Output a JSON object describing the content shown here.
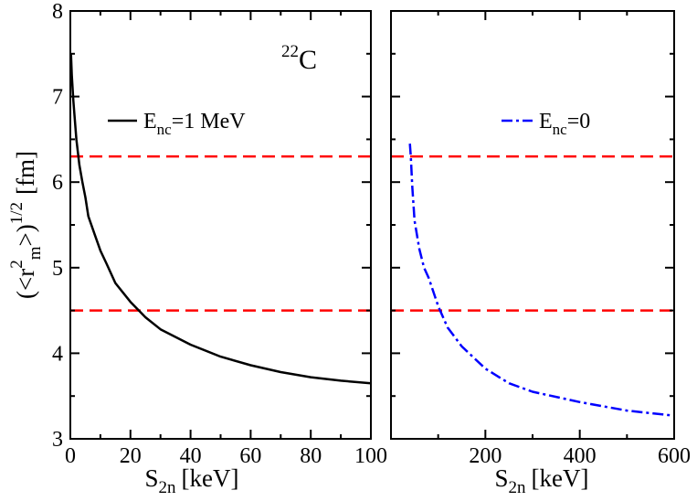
{
  "chart_data": [
    {
      "type": "line",
      "panel": "left",
      "annotation": {
        "mass": "22",
        "element": "C"
      },
      "xlabel": {
        "main": "S",
        "sub": "2n",
        "unit": "[keV]"
      },
      "ylabel": {
        "open": "(<r",
        "sup2": "2",
        "sub": "m",
        "close": ">)",
        "exp": "1/2",
        "unit": "[fm]"
      },
      "xlim": [
        0,
        100
      ],
      "ylim": [
        3,
        8
      ],
      "xticks": [
        0,
        20,
        40,
        60,
        80,
        100
      ],
      "yticks": [
        3,
        4,
        5,
        6,
        7,
        8
      ],
      "hlines": [
        {
          "y": 6.3,
          "color": "#ff0000",
          "style": "dashed"
        },
        {
          "y": 4.5,
          "color": "#ff0000",
          "style": "dashed"
        }
      ],
      "series": [
        {
          "name": "E_nc=1 MeV",
          "legend": {
            "main": "E",
            "sub": "nc",
            "rest": "=1 MeV"
          },
          "color": "#000000",
          "style": "solid",
          "x": [
            0.2,
            0.5,
            1,
            2,
            3,
            4,
            5,
            6,
            8,
            10,
            12,
            15,
            20,
            25,
            30,
            40,
            50,
            60,
            70,
            80,
            90,
            100
          ],
          "y": [
            7.5,
            7.25,
            6.95,
            6.5,
            6.2,
            6.0,
            5.82,
            5.6,
            5.4,
            5.2,
            5.05,
            4.82,
            4.6,
            4.42,
            4.28,
            4.1,
            3.96,
            3.86,
            3.78,
            3.72,
            3.68,
            3.65
          ]
        }
      ]
    },
    {
      "type": "line",
      "panel": "right",
      "xlabel": {
        "main": "S",
        "sub": "2n",
        "unit": "[keV]"
      },
      "xlim": [
        0,
        600
      ],
      "ylim": [
        3,
        8
      ],
      "xticks": [
        200,
        400,
        600
      ],
      "hlines": [
        {
          "y": 6.3,
          "color": "#ff0000",
          "style": "dashed"
        },
        {
          "y": 4.5,
          "color": "#ff0000",
          "style": "dashed"
        }
      ],
      "series": [
        {
          "name": "E_nc=0",
          "legend": {
            "main": "E",
            "sub": "nc",
            "rest": "=0"
          },
          "color": "#0000ff",
          "style": "dashdot",
          "x": [
            40,
            42,
            45,
            50,
            60,
            70,
            80,
            100,
            120,
            150,
            200,
            250,
            300,
            400,
            500,
            600
          ],
          "y": [
            6.45,
            6.3,
            5.95,
            5.55,
            5.22,
            5.0,
            4.88,
            4.55,
            4.3,
            4.08,
            3.82,
            3.65,
            3.55,
            3.43,
            3.33,
            3.27
          ]
        }
      ]
    }
  ]
}
